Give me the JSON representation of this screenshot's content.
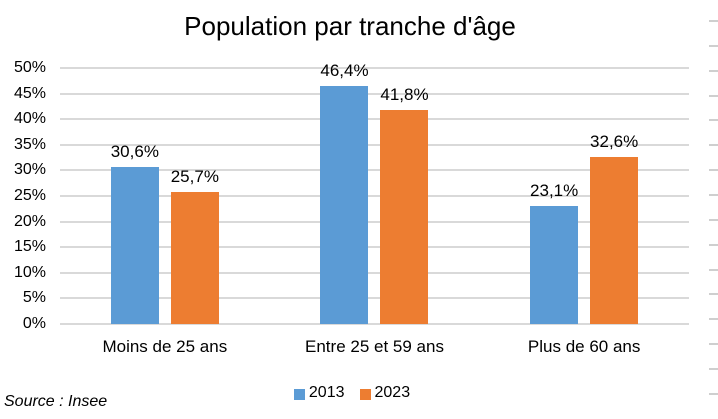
{
  "chart_data": {
    "type": "bar",
    "title": "Population par tranche d'âge",
    "categories": [
      "Moins de 25 ans",
      "Entre 25 et 59 ans",
      "Plus de 60 ans"
    ],
    "series": [
      {
        "name": "2013",
        "color": "#5B9BD5",
        "values": [
          30.6,
          46.4,
          23.1
        ],
        "labels": [
          "30,6%",
          "46,4%",
          "23,1%"
        ]
      },
      {
        "name": "2023",
        "color": "#ED7D31",
        "values": [
          25.7,
          41.8,
          32.6
        ],
        "labels": [
          "25,7%",
          "41,8%",
          "32,6%"
        ]
      }
    ],
    "xlabel": "",
    "ylabel": "",
    "ylim": [
      0,
      50
    ],
    "ytick_step": 5,
    "ytick_labels": [
      "0%",
      "5%",
      "10%",
      "15%",
      "20%",
      "25%",
      "30%",
      "35%",
      "40%",
      "45%",
      "50%"
    ],
    "grid": true,
    "legend_position": "bottom"
  },
  "source_note": "Source : Insee",
  "colors": {
    "series_2013": "#5B9BD5",
    "series_2023": "#ED7D31",
    "gridline": "#D9D9D9",
    "background": "#FFFFFF",
    "text": "#000000"
  }
}
